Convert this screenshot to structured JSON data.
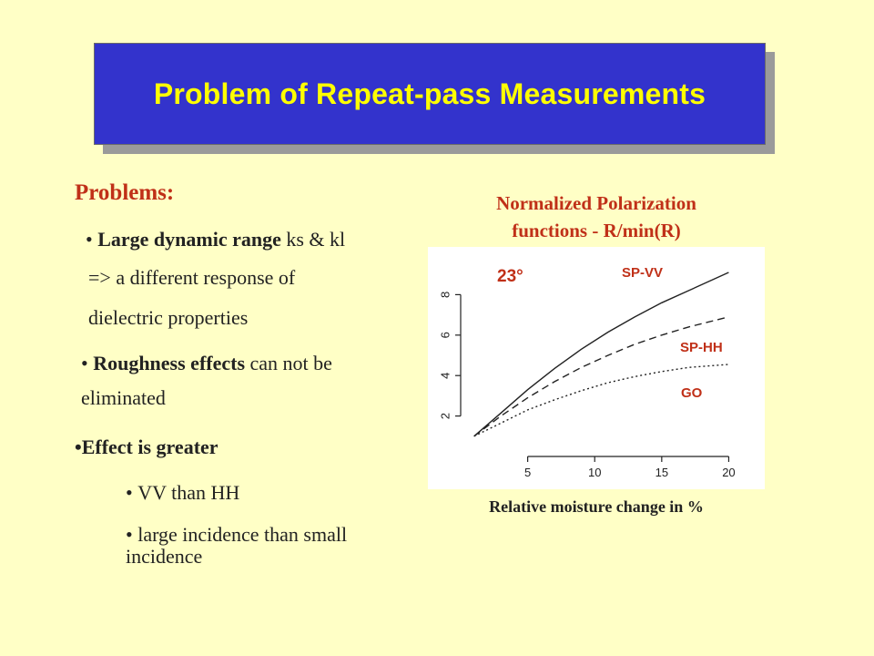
{
  "title": "Problem of Repeat-pass Measurements",
  "problems_heading": "Problems:",
  "bullet1": {
    "bold": "Large dynamic range",
    "rest": " ks & kl"
  },
  "bullet1_line2": "=>  a different response of",
  "bullet1_line3": "dielectric properties",
  "bullet2": {
    "bold": "Roughness effects",
    "rest": " can not be"
  },
  "bullet2_line2": "eliminated",
  "bullet3": "Effect is greater",
  "sub1": "VV than HH",
  "sub2_line1": "large incidence than small",
  "sub2_line2": "incidence",
  "chart_data": {
    "type": "line",
    "title_line1": "Normalized Polarization",
    "title_line2": "functions - R/min(R)",
    "xlabel": "Relative moisture change in %",
    "angle_label": "23°",
    "xlim": [
      0,
      21.6
    ],
    "ylim": [
      0,
      10
    ],
    "xticks": [
      5,
      10,
      15,
      20
    ],
    "yticks": [
      2,
      4,
      6,
      8
    ],
    "series": [
      {
        "name": "SP-VV",
        "style": "solid",
        "x": [
          1,
          3,
          5,
          7,
          9,
          11,
          13,
          15,
          17,
          20
        ],
        "y": [
          1.0,
          2.15,
          3.3,
          4.35,
          5.3,
          6.15,
          6.9,
          7.6,
          8.2,
          9.1
        ]
      },
      {
        "name": "SP-HH",
        "style": "dashed",
        "x": [
          1,
          3,
          5,
          7,
          9,
          11,
          13,
          15,
          17,
          20
        ],
        "y": [
          1.0,
          2.0,
          2.9,
          3.7,
          4.4,
          5.0,
          5.55,
          6.0,
          6.4,
          6.9
        ]
      },
      {
        "name": "GO",
        "style": "dotted",
        "x": [
          1,
          3,
          5,
          7,
          9,
          11,
          13,
          15,
          17,
          20
        ],
        "y": [
          1.0,
          1.65,
          2.3,
          2.8,
          3.25,
          3.65,
          3.95,
          4.2,
          4.4,
          4.55
        ]
      }
    ]
  }
}
